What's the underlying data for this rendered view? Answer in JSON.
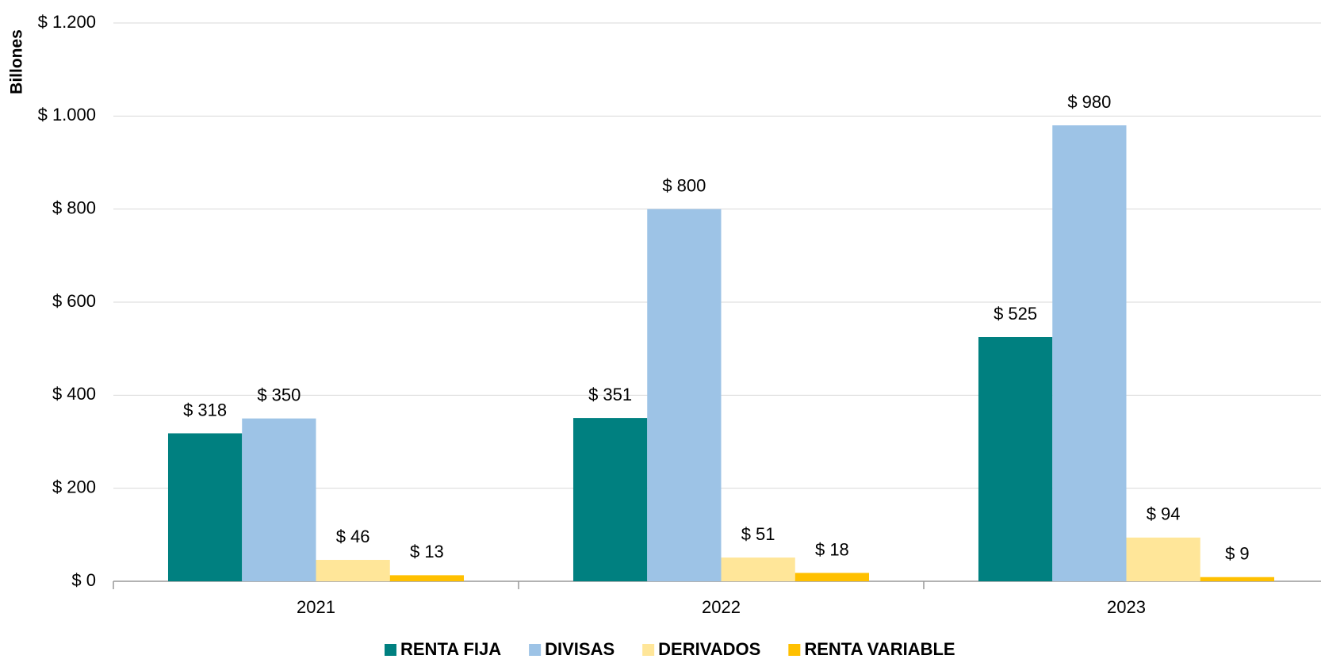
{
  "chart_data": {
    "type": "bar",
    "y_axis_label": "Billones",
    "categories": [
      "2021",
      "2022",
      "2023"
    ],
    "series": [
      {
        "name": "RENTA FIJA",
        "color": "#008080",
        "values": [
          318,
          351,
          525
        ],
        "value_labels": [
          "$ 318",
          "$ 351",
          "$ 525"
        ]
      },
      {
        "name": "DIVISAS",
        "color": "#9dc3e6",
        "values": [
          350,
          800,
          980
        ],
        "value_labels": [
          "$ 350",
          "$ 800",
          "$ 980"
        ]
      },
      {
        "name": "DERIVADOS",
        "color": "#ffe699",
        "values": [
          46,
          51,
          94
        ],
        "value_labels": [
          "$ 46",
          "$ 51",
          "$ 94"
        ]
      },
      {
        "name": "RENTA VARIABLE",
        "color": "#ffc000",
        "values": [
          13,
          18,
          9
        ],
        "value_labels": [
          "$ 13",
          "$ 18",
          "$ 9"
        ]
      }
    ],
    "ylim": [
      0,
      1200
    ],
    "yticks": [
      {
        "value": 0,
        "label": "$ 0"
      },
      {
        "value": 200,
        "label": "$ 200"
      },
      {
        "value": 400,
        "label": "$ 400"
      },
      {
        "value": 600,
        "label": "$ 600"
      },
      {
        "value": 800,
        "label": "$ 800"
      },
      {
        "value": 1000,
        "label": "$ 1.000"
      },
      {
        "value": 1200,
        "label": "$ 1.200"
      }
    ],
    "grid": true,
    "legend": "bottom"
  }
}
